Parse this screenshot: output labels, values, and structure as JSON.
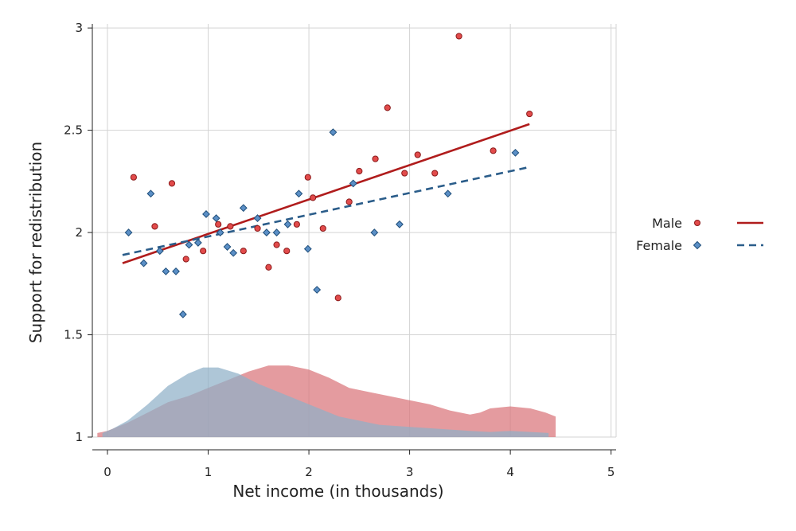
{
  "chart_data": {
    "type": "scatter",
    "title": "",
    "xlabel": "Net income (in thousands)",
    "ylabel": "Support for redistribution",
    "xlim": [
      -0.15,
      5.05
    ],
    "ylim": [
      1.0,
      3.02
    ],
    "xticks": [
      0,
      1,
      2,
      3,
      4,
      5
    ],
    "yticks": [
      1,
      1.5,
      2,
      2.5,
      3
    ],
    "xtick_labels": [
      "0",
      "1",
      "2",
      "3",
      "4",
      "5"
    ],
    "ytick_labels": [
      "1",
      "1.5",
      "2",
      "2.5",
      "3"
    ],
    "grid": true,
    "legend_position": "right",
    "series": [
      {
        "name": "Male",
        "marker": "circle",
        "color": "#e24b4b",
        "edge": "#8b1a1a",
        "points": [
          [
            0.26,
            2.27
          ],
          [
            0.47,
            2.03
          ],
          [
            0.64,
            2.24
          ],
          [
            0.78,
            1.87
          ],
          [
            0.95,
            1.91
          ],
          [
            1.1,
            2.04
          ],
          [
            1.22,
            2.03
          ],
          [
            1.35,
            1.91
          ],
          [
            1.49,
            2.02
          ],
          [
            1.6,
            1.83
          ],
          [
            1.68,
            1.94
          ],
          [
            1.78,
            1.91
          ],
          [
            1.88,
            2.04
          ],
          [
            1.99,
            2.27
          ],
          [
            2.04,
            2.17
          ],
          [
            2.14,
            2.02
          ],
          [
            2.29,
            1.68
          ],
          [
            2.4,
            2.15
          ],
          [
            2.5,
            2.3
          ],
          [
            2.66,
            2.36
          ],
          [
            2.78,
            2.61
          ],
          [
            2.95,
            2.29
          ],
          [
            3.08,
            2.38
          ],
          [
            3.25,
            2.29
          ],
          [
            3.49,
            2.96
          ],
          [
            3.83,
            2.4
          ],
          [
            4.19,
            2.58
          ]
        ],
        "fit": {
          "x": [
            0.15,
            4.19
          ],
          "y": [
            1.85,
            2.53
          ],
          "color": "#b01c1c",
          "style": "solid"
        }
      },
      {
        "name": "Female",
        "marker": "diamond",
        "color": "#5b8fc6",
        "edge": "#1f4e7a",
        "points": [
          [
            0.21,
            2.0
          ],
          [
            0.36,
            1.85
          ],
          [
            0.43,
            2.19
          ],
          [
            0.52,
            1.91
          ],
          [
            0.58,
            1.81
          ],
          [
            0.68,
            1.81
          ],
          [
            0.75,
            1.6
          ],
          [
            0.81,
            1.94
          ],
          [
            0.9,
            1.95
          ],
          [
            0.98,
            2.09
          ],
          [
            1.08,
            2.07
          ],
          [
            1.12,
            2.0
          ],
          [
            1.19,
            1.93
          ],
          [
            1.25,
            1.9
          ],
          [
            1.35,
            2.12
          ],
          [
            1.49,
            2.07
          ],
          [
            1.58,
            2.0
          ],
          [
            1.68,
            2.0
          ],
          [
            1.79,
            2.04
          ],
          [
            1.9,
            2.19
          ],
          [
            1.99,
            1.92
          ],
          [
            2.08,
            1.72
          ],
          [
            2.24,
            2.49
          ],
          [
            2.44,
            2.24
          ],
          [
            2.65,
            2.0
          ],
          [
            2.9,
            2.04
          ],
          [
            3.38,
            2.19
          ],
          [
            4.05,
            2.39
          ]
        ],
        "fit": {
          "x": [
            0.15,
            4.19
          ],
          "y": [
            1.89,
            2.32
          ],
          "color": "#2b5d8a",
          "style": "dashed"
        }
      }
    ],
    "densities": [
      {
        "series": "Male",
        "color": "#d9747a",
        "opacity": 0.72,
        "points": [
          [
            -0.1,
            1.02
          ],
          [
            0.0,
            1.03
          ],
          [
            0.2,
            1.07
          ],
          [
            0.4,
            1.12
          ],
          [
            0.6,
            1.17
          ],
          [
            0.8,
            1.2
          ],
          [
            1.0,
            1.24
          ],
          [
            1.2,
            1.28
          ],
          [
            1.4,
            1.32
          ],
          [
            1.6,
            1.35
          ],
          [
            1.8,
            1.35
          ],
          [
            2.0,
            1.33
          ],
          [
            2.2,
            1.29
          ],
          [
            2.4,
            1.24
          ],
          [
            2.6,
            1.22
          ],
          [
            2.8,
            1.2
          ],
          [
            3.0,
            1.18
          ],
          [
            3.2,
            1.16
          ],
          [
            3.4,
            1.13
          ],
          [
            3.6,
            1.11
          ],
          [
            3.7,
            1.12
          ],
          [
            3.8,
            1.14
          ],
          [
            4.0,
            1.15
          ],
          [
            4.2,
            1.14
          ],
          [
            4.35,
            1.12
          ],
          [
            4.45,
            1.1
          ]
        ]
      },
      {
        "series": "Female",
        "color": "#8fb0c8",
        "opacity": 0.72,
        "points": [
          [
            -0.05,
            1.02
          ],
          [
            0.05,
            1.04
          ],
          [
            0.2,
            1.08
          ],
          [
            0.4,
            1.16
          ],
          [
            0.6,
            1.25
          ],
          [
            0.8,
            1.31
          ],
          [
            0.95,
            1.34
          ],
          [
            1.1,
            1.34
          ],
          [
            1.3,
            1.31
          ],
          [
            1.5,
            1.26
          ],
          [
            1.7,
            1.22
          ],
          [
            1.9,
            1.18
          ],
          [
            2.1,
            1.14
          ],
          [
            2.3,
            1.1
          ],
          [
            2.5,
            1.08
          ],
          [
            2.7,
            1.06
          ],
          [
            3.0,
            1.05
          ],
          [
            3.3,
            1.04
          ],
          [
            3.6,
            1.03
          ],
          [
            3.8,
            1.025
          ],
          [
            4.0,
            1.03
          ],
          [
            4.2,
            1.025
          ],
          [
            4.38,
            1.02
          ]
        ]
      }
    ]
  },
  "legend": {
    "items": [
      {
        "label": "Male",
        "marker": "circle",
        "line": "solid",
        "color": "#e24b4b",
        "line_color": "#b01c1c"
      },
      {
        "label": "Female",
        "marker": "diamond",
        "line": "dashed",
        "color": "#5b8fc6",
        "line_color": "#2b5d8a"
      }
    ]
  }
}
